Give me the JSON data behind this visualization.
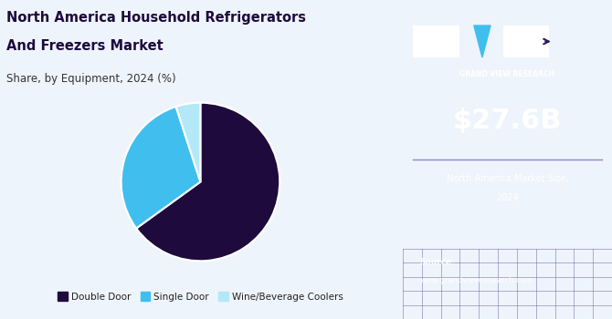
{
  "title_line1": "North America Household Refrigerators",
  "title_line2": "And Freezers Market",
  "subtitle": "Share, by Equipment, 2024 (%)",
  "pie_labels": [
    "Double Door",
    "Single Door",
    "Wine/Beverage Coolers"
  ],
  "pie_values": [
    65,
    30,
    5
  ],
  "pie_colors": [
    "#1e0a3c",
    "#40bfef",
    "#b3e8f8"
  ],
  "pie_startangle": 90,
  "left_bg": "#eef4fb",
  "right_bg": "#2d1b5e",
  "market_size": "$27.6B",
  "market_label_line1": "North America Market Size,",
  "market_label_line2": "2024",
  "source_label": "Source:",
  "source_url": "www.grandviewresearch.com",
  "legend_labels": [
    "Double Door",
    "Single Door",
    "Wine/Beverage Coolers"
  ],
  "legend_colors": [
    "#1e0a3c",
    "#40bfef",
    "#b3e8f8"
  ],
  "gvr_text": "GRAND VIEW RESEARCH",
  "grid_bottom_color": "#5a4a9a",
  "divider_color": "#8888cc"
}
